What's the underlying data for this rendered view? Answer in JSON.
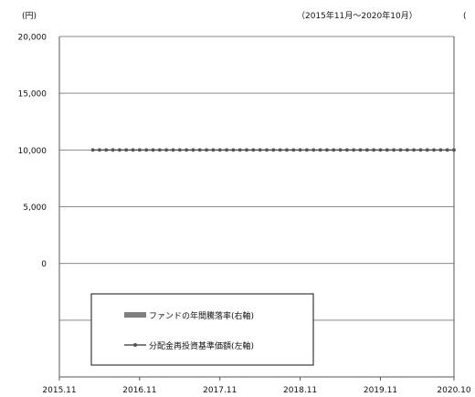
{
  "chart_data": {
    "type": "line",
    "unit_label": "(円)",
    "period_label": "（2015年11月～2020年10月）",
    "right_paren": "(",
    "y_ticks": [
      20000,
      15000,
      10000,
      5000,
      0
    ],
    "y_tick_labels": [
      "20,000",
      "15,000",
      "10,000",
      "5,000",
      "0"
    ],
    "ylim": [
      -10000,
      20000
    ],
    "x_ticks": [
      "2015-11",
      "2016-11",
      "2017-11",
      "2018-11",
      "2019-11",
      "2020-10"
    ],
    "x_tick_labels": [
      "2015.11",
      "2016.11",
      "2017.11",
      "2018.11",
      "2019.11",
      "2020.10"
    ],
    "grid": true,
    "legend_position": "bottom-left",
    "series": [
      {
        "name": "ファンドの年間騰落率(右軸)",
        "type": "bar",
        "color": "#808080",
        "values": []
      },
      {
        "name": "分配金再投資基準価額(左軸)",
        "type": "line",
        "color": "#555555",
        "x_start": "2016-04",
        "x_end": "2020-10",
        "value": 10000,
        "point_count": 55
      }
    ]
  }
}
